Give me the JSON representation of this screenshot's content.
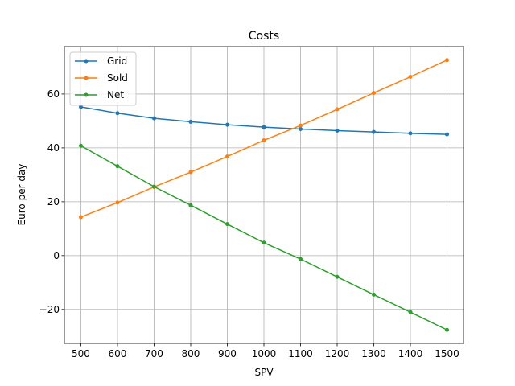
{
  "chart_data": {
    "type": "line",
    "title": "Costs",
    "xlabel": "SPV",
    "ylabel": "Euro per day",
    "x": [
      500,
      600,
      700,
      800,
      900,
      1000,
      1100,
      1200,
      1300,
      1400,
      1500
    ],
    "xlim": [
      455,
      1545
    ],
    "ylim": [
      -32.6,
      77.6
    ],
    "x_ticks": [
      500,
      600,
      700,
      800,
      900,
      1000,
      1100,
      1200,
      1300,
      1400,
      1500
    ],
    "y_ticks": [
      -20,
      0,
      20,
      40,
      60
    ],
    "y_tick_labels": [
      "−20",
      "0",
      "20",
      "40",
      "60"
    ],
    "grid": true,
    "legend_position": "upper-left",
    "series": [
      {
        "name": "Grid",
        "color": "#1f77b4",
        "values": [
          55.2,
          52.9,
          51.0,
          49.7,
          48.6,
          47.7,
          47.0,
          46.4,
          45.9,
          45.4,
          45.0
        ]
      },
      {
        "name": "Sold",
        "color": "#ff7f0e",
        "values": [
          14.3,
          19.7,
          25.5,
          31.0,
          36.8,
          42.8,
          48.3,
          54.3,
          60.4,
          66.4,
          72.6
        ]
      },
      {
        "name": "Net",
        "color": "#2ca02c",
        "values": [
          40.8,
          33.2,
          25.6,
          18.7,
          11.7,
          4.8,
          -1.3,
          -7.9,
          -14.5,
          -21.0,
          -27.6
        ]
      }
    ]
  }
}
